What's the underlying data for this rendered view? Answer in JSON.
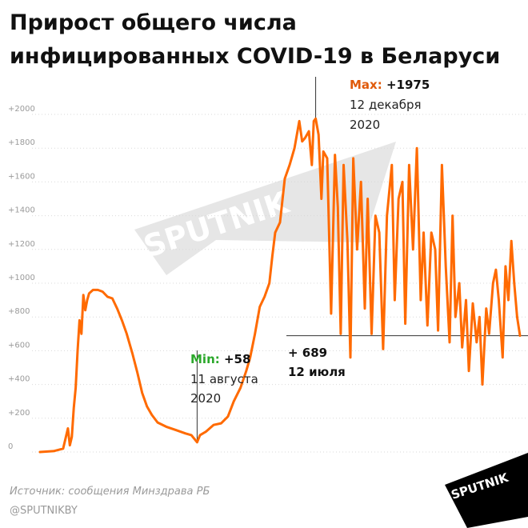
{
  "title": "Прирост общего числа инфицированных COVID-19 в Беларуси",
  "source": "Источник: сообщения Минздрава РБ",
  "handle": "@SPUTNIKBY",
  "watermark": "SPUTNIK",
  "logo_text": "SPUTNIK",
  "colors": {
    "line": "#ff6a00",
    "max_label": "#e05a0a",
    "min_label": "#2ba82b",
    "grid": "#d9d9d9",
    "tick": "#9a9a9a",
    "watermark": "#e6e6e6",
    "logo_bg": "#000000"
  },
  "chart_data": {
    "type": "line",
    "title": "Прирост общего числа инфицированных COVID-19 в Беларуси",
    "xlabel": "",
    "ylabel": "",
    "ylim": [
      0,
      2000
    ],
    "x_range": [
      "2020-03-01",
      "2021-07-12"
    ],
    "grid": "horizontal dotted",
    "yticks": [
      {
        "value": 0,
        "label": "0"
      },
      {
        "value": 200,
        "label": "+200"
      },
      {
        "value": 400,
        "label": "+400"
      },
      {
        "value": 600,
        "label": "+600"
      },
      {
        "value": 800,
        "label": "+800"
      },
      {
        "value": 1000,
        "label": "+1000"
      },
      {
        "value": 1200,
        "label": "+1200"
      },
      {
        "value": 1400,
        "label": "+1400"
      },
      {
        "value": 1600,
        "label": "+1600"
      },
      {
        "value": 1800,
        "label": "+1800"
      },
      {
        "value": 2000,
        "label": "+2000"
      }
    ],
    "series": [
      {
        "points": [
          [
            "2020-03-01",
            0
          ],
          [
            "2020-03-15",
            5
          ],
          [
            "2020-03-25",
            20
          ],
          [
            "2020-03-30",
            140
          ],
          [
            "2020-04-01",
            40
          ],
          [
            "2020-04-03",
            90
          ],
          [
            "2020-04-05",
            260
          ],
          [
            "2020-04-07",
            380
          ],
          [
            "2020-04-09",
            600
          ],
          [
            "2020-04-11",
            780
          ],
          [
            "2020-04-13",
            700
          ],
          [
            "2020-04-15",
            930
          ],
          [
            "2020-04-17",
            840
          ],
          [
            "2020-04-19",
            900
          ],
          [
            "2020-04-21",
            940
          ],
          [
            "2020-04-25",
            960
          ],
          [
            "2020-04-30",
            960
          ],
          [
            "2020-05-05",
            950
          ],
          [
            "2020-05-10",
            920
          ],
          [
            "2020-05-15",
            910
          ],
          [
            "2020-05-20",
            850
          ],
          [
            "2020-05-25",
            780
          ],
          [
            "2020-05-30",
            700
          ],
          [
            "2020-06-05",
            580
          ],
          [
            "2020-06-10",
            470
          ],
          [
            "2020-06-15",
            350
          ],
          [
            "2020-06-20",
            270
          ],
          [
            "2020-06-25",
            220
          ],
          [
            "2020-07-01",
            175
          ],
          [
            "2020-07-10",
            150
          ],
          [
            "2020-07-20",
            130
          ],
          [
            "2020-07-30",
            110
          ],
          [
            "2020-08-05",
            100
          ],
          [
            "2020-08-11",
            58
          ],
          [
            "2020-08-14",
            100
          ],
          [
            "2020-08-20",
            120
          ],
          [
            "2020-08-28",
            160
          ],
          [
            "2020-09-05",
            170
          ],
          [
            "2020-09-12",
            210
          ],
          [
            "2020-09-18",
            300
          ],
          [
            "2020-09-25",
            380
          ],
          [
            "2020-10-01",
            480
          ],
          [
            "2020-10-05",
            560
          ],
          [
            "2020-10-10",
            700
          ],
          [
            "2020-10-15",
            860
          ],
          [
            "2020-10-20",
            920
          ],
          [
            "2020-10-25",
            1000
          ],
          [
            "2020-10-28",
            1160
          ],
          [
            "2020-10-31",
            1300
          ],
          [
            "2020-11-05",
            1360
          ],
          [
            "2020-11-10",
            1620
          ],
          [
            "2020-11-15",
            1700
          ],
          [
            "2020-11-20",
            1800
          ],
          [
            "2020-11-25",
            1960
          ],
          [
            "2020-11-28",
            1840
          ],
          [
            "2020-12-01",
            1860
          ],
          [
            "2020-12-05",
            1900
          ],
          [
            "2020-12-08",
            1700
          ],
          [
            "2020-12-10",
            1960
          ],
          [
            "2020-12-12",
            1975
          ],
          [
            "2020-12-15",
            1880
          ],
          [
            "2020-12-18",
            1500
          ],
          [
            "2020-12-20",
            1780
          ],
          [
            "2020-12-24",
            1740
          ],
          [
            "2020-12-28",
            820
          ],
          [
            "2021-01-01",
            1760
          ],
          [
            "2021-01-04",
            1450
          ],
          [
            "2021-01-07",
            700
          ],
          [
            "2021-01-10",
            1700
          ],
          [
            "2021-01-14",
            1250
          ],
          [
            "2021-01-17",
            560
          ],
          [
            "2021-01-20",
            1740
          ],
          [
            "2021-01-24",
            1200
          ],
          [
            "2021-01-28",
            1600
          ],
          [
            "2021-02-01",
            850
          ],
          [
            "2021-02-04",
            1500
          ],
          [
            "2021-02-08",
            700
          ],
          [
            "2021-02-12",
            1400
          ],
          [
            "2021-02-16",
            1300
          ],
          [
            "2021-02-20",
            610
          ],
          [
            "2021-02-24",
            1400
          ],
          [
            "2021-03-01",
            1700
          ],
          [
            "2021-03-04",
            900
          ],
          [
            "2021-03-08",
            1500
          ],
          [
            "2021-03-12",
            1600
          ],
          [
            "2021-03-15",
            760
          ],
          [
            "2021-03-19",
            1700
          ],
          [
            "2021-03-23",
            1200
          ],
          [
            "2021-03-27",
            1800
          ],
          [
            "2021-03-31",
            900
          ],
          [
            "2021-04-03",
            1300
          ],
          [
            "2021-04-07",
            750
          ],
          [
            "2021-04-11",
            1300
          ],
          [
            "2021-04-15",
            1200
          ],
          [
            "2021-04-18",
            720
          ],
          [
            "2021-04-22",
            1700
          ],
          [
            "2021-04-26",
            1100
          ],
          [
            "2021-04-30",
            650
          ],
          [
            "2021-05-03",
            1400
          ],
          [
            "2021-05-06",
            800
          ],
          [
            "2021-05-10",
            1000
          ],
          [
            "2021-05-13",
            620
          ],
          [
            "2021-05-17",
            900
          ],
          [
            "2021-05-20",
            480
          ],
          [
            "2021-05-24",
            880
          ],
          [
            "2021-05-28",
            650
          ],
          [
            "2021-05-31",
            800
          ],
          [
            "2021-06-03",
            400
          ],
          [
            "2021-06-07",
            850
          ],
          [
            "2021-06-10",
            700
          ],
          [
            "2021-06-14",
            1000
          ],
          [
            "2021-06-17",
            1080
          ],
          [
            "2021-06-20",
            900
          ],
          [
            "2021-06-24",
            560
          ],
          [
            "2021-06-27",
            1100
          ],
          [
            "2021-06-30",
            900
          ],
          [
            "2021-07-03",
            1250
          ],
          [
            "2021-07-06",
            1000
          ],
          [
            "2021-07-09",
            800
          ],
          [
            "2021-07-12",
            689
          ]
        ]
      }
    ],
    "annotations": {
      "max": {
        "label": "Max:",
        "value_text": "+1975",
        "date_line1": "12 декабря",
        "date_line2": "2020",
        "x": "2020-12-12",
        "y": 1975
      },
      "min": {
        "label": "Min:",
        "value_text": "+58",
        "date_line1": "11 августа",
        "date_line2": "2020",
        "x": "2020-08-11",
        "y": 58
      },
      "last": {
        "value_text": "+ 689",
        "date": "12 июля",
        "x": "2021-07-12",
        "y": 689
      }
    }
  }
}
